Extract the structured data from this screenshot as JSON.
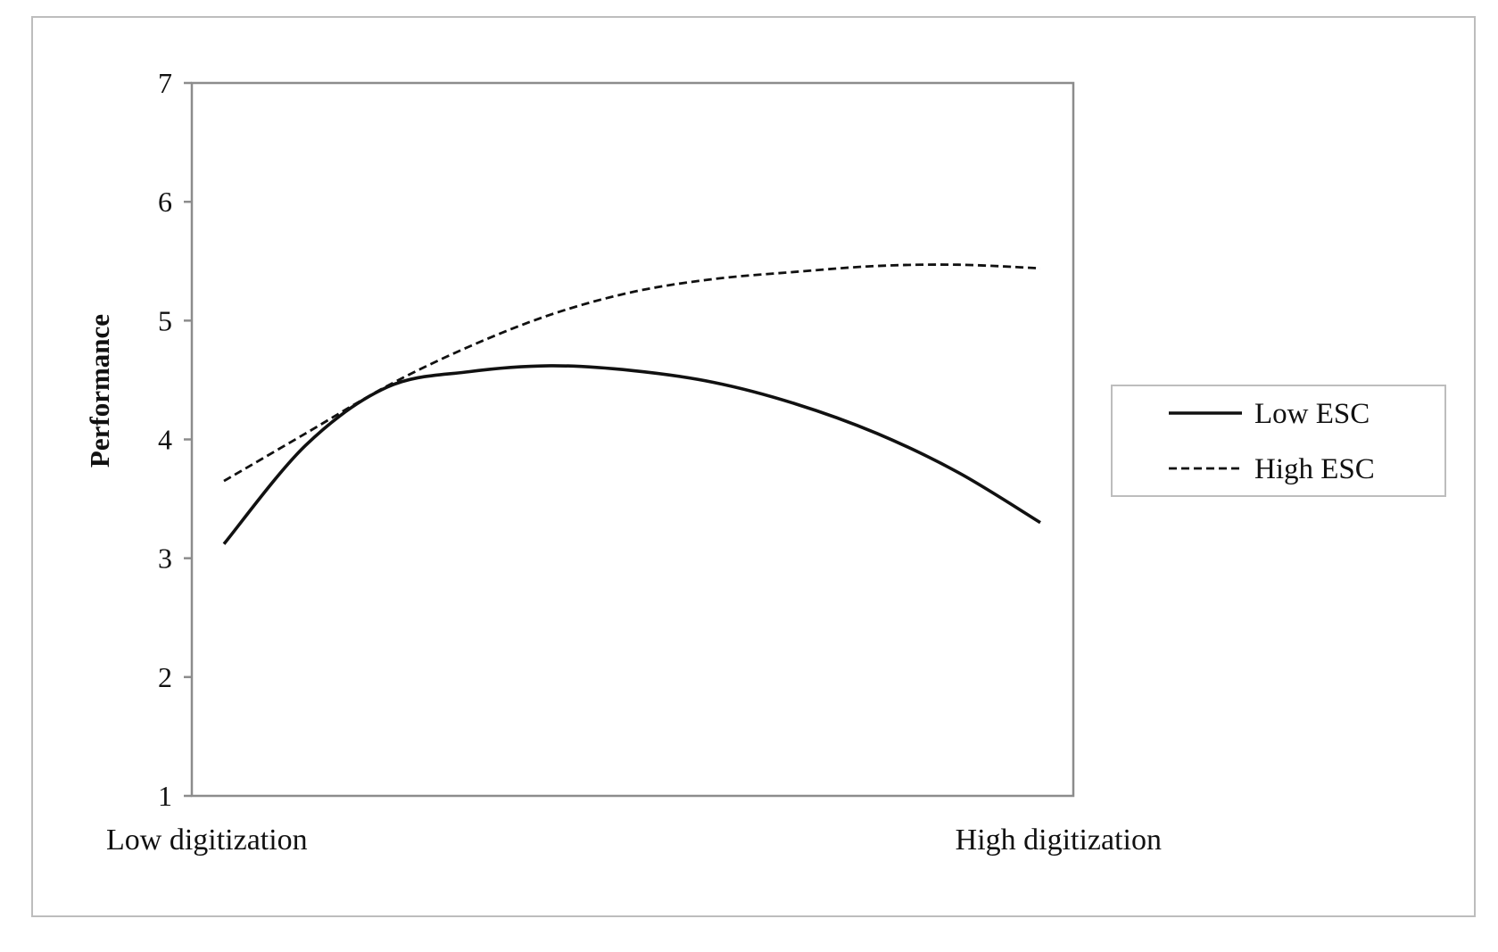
{
  "chart_data": {
    "type": "line",
    "title": "",
    "xlabel": "",
    "ylabel": "Performance",
    "x_ticks": [
      "Low digitization",
      "High digitization"
    ],
    "x": [
      0,
      0.1,
      0.2,
      0.3,
      0.4,
      0.5,
      0.6,
      0.7,
      0.8,
      0.9,
      1.0
    ],
    "ylim": [
      1,
      7
    ],
    "yticks": [
      1,
      2,
      3,
      4,
      5,
      6,
      7
    ],
    "grid": false,
    "legend_position": "right",
    "series": [
      {
        "name": "Low ESC",
        "style": "solid",
        "color": "#111111",
        "values": [
          3.12,
          3.95,
          4.44,
          4.57,
          4.62,
          4.58,
          4.48,
          4.3,
          4.05,
          3.72,
          3.3
        ]
      },
      {
        "name": "High ESC",
        "style": "dashed",
        "color": "#111111",
        "values": [
          3.65,
          4.05,
          4.45,
          4.78,
          5.05,
          5.24,
          5.35,
          5.41,
          5.46,
          5.47,
          5.44
        ]
      }
    ]
  }
}
